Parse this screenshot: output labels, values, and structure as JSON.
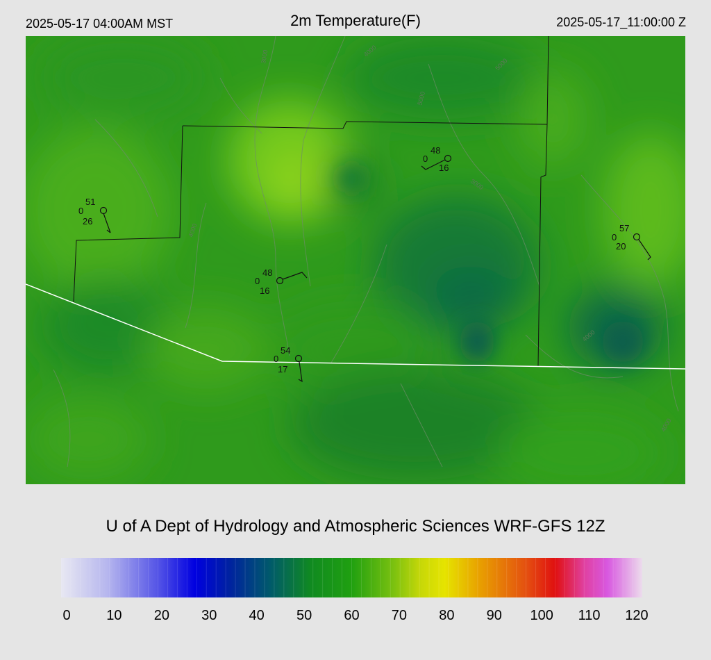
{
  "header": {
    "local_time": "2025-05-17 04:00AM MST",
    "title": "2m Temperature(F)",
    "utc_time": "2025-05-17_11:00:00 Z"
  },
  "credit": "U of A Dept of Hydrology and Atmospheric Sciences WRF-GFS 12Z",
  "colorbar": {
    "ticks": [
      "0",
      "10",
      "20",
      "30",
      "40",
      "50",
      "60",
      "70",
      "80",
      "90",
      "100",
      "110",
      "120"
    ],
    "min": 0,
    "max": 120
  },
  "stations": [
    {
      "temp": "51",
      "cloud": "0",
      "dew": "26"
    },
    {
      "temp": "48",
      "cloud": "0",
      "dew": "16"
    },
    {
      "temp": "48",
      "cloud": "0",
      "dew": "16"
    },
    {
      "temp": "54",
      "cloud": "0",
      "dew": "17"
    },
    {
      "temp": "57",
      "cloud": "0",
      "dew": "20"
    }
  ],
  "contour_labels": [
    "4000",
    "5000",
    "3000",
    "6000",
    "7000"
  ],
  "colors": {
    "background": "#e5e5e5",
    "county_border": "#111111",
    "state_border": "#ffffff",
    "contour": "#7a8a7a"
  }
}
